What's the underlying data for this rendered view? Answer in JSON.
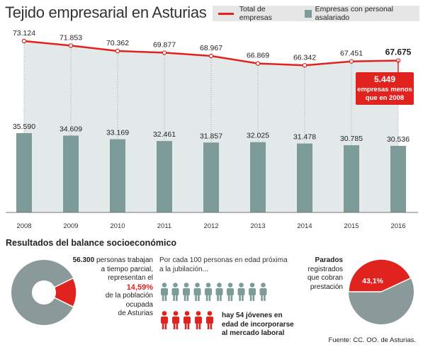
{
  "title": "Tejido empresarial en Asturias",
  "legend": {
    "line_label": "Total de empresas",
    "bar_label": "Empresas con personal asalariado"
  },
  "colors": {
    "line": "#e1231f",
    "bars": "#7c9b99",
    "area": "#e3e8e8",
    "pie_gray": "#8a9a9a"
  },
  "chart_data": {
    "type": "bar",
    "categories": [
      "2008",
      "2009",
      "2010",
      "2011",
      "2012",
      "2013",
      "2014",
      "2015",
      "2016"
    ],
    "series": [
      {
        "name": "Total de empresas",
        "type": "line",
        "values": [
          73124,
          71853,
          70362,
          69877,
          68967,
          66869,
          66342,
          67451,
          67675
        ],
        "labels": [
          "73.124",
          "71.853",
          "70.362",
          "69.877",
          "68.967",
          "66.869",
          "66.342",
          "67.451",
          "67.675"
        ]
      },
      {
        "name": "Empresas con personal asalariado",
        "type": "bar",
        "values": [
          35590,
          34609,
          33169,
          32461,
          31857,
          32025,
          31478,
          30785,
          30536
        ],
        "labels": [
          "35.590",
          "34.609",
          "33.169",
          "32.461",
          "31.857",
          "32.025",
          "31.478",
          "30.785",
          "30.536"
        ]
      }
    ],
    "annotation": {
      "value": "5.449",
      "line1": "empresas menos",
      "line2": "que en 2008"
    }
  },
  "section2": {
    "title": "Resultados del balance socioeconómico",
    "stat1": {
      "number": "56.300",
      "text1": "personas trabajan",
      "text2": "a tiempo parcial,",
      "text3": "representan el",
      "percent": "14,59%",
      "percent_value": 14.59,
      "text4": "de la población",
      "text5": "ocupada",
      "text6": "de Asturias"
    },
    "stat2": {
      "intro1": "Por cada 100 personas en edad próxima",
      "intro2": "a la jubilación...",
      "gray_count": 10,
      "red_count": 5,
      "bold1": "hay 54 jóvenes en",
      "bold2": "edad de incorporarse",
      "bold3": "al mercado laboral"
    },
    "stat3": {
      "bold": "Parados",
      "text1": "registrados",
      "text2": "que cobran",
      "text3": "prestación",
      "percent": "43,1%",
      "percent_value": 43.1
    }
  },
  "source": "Fuente: CC. OO. de Asturias."
}
